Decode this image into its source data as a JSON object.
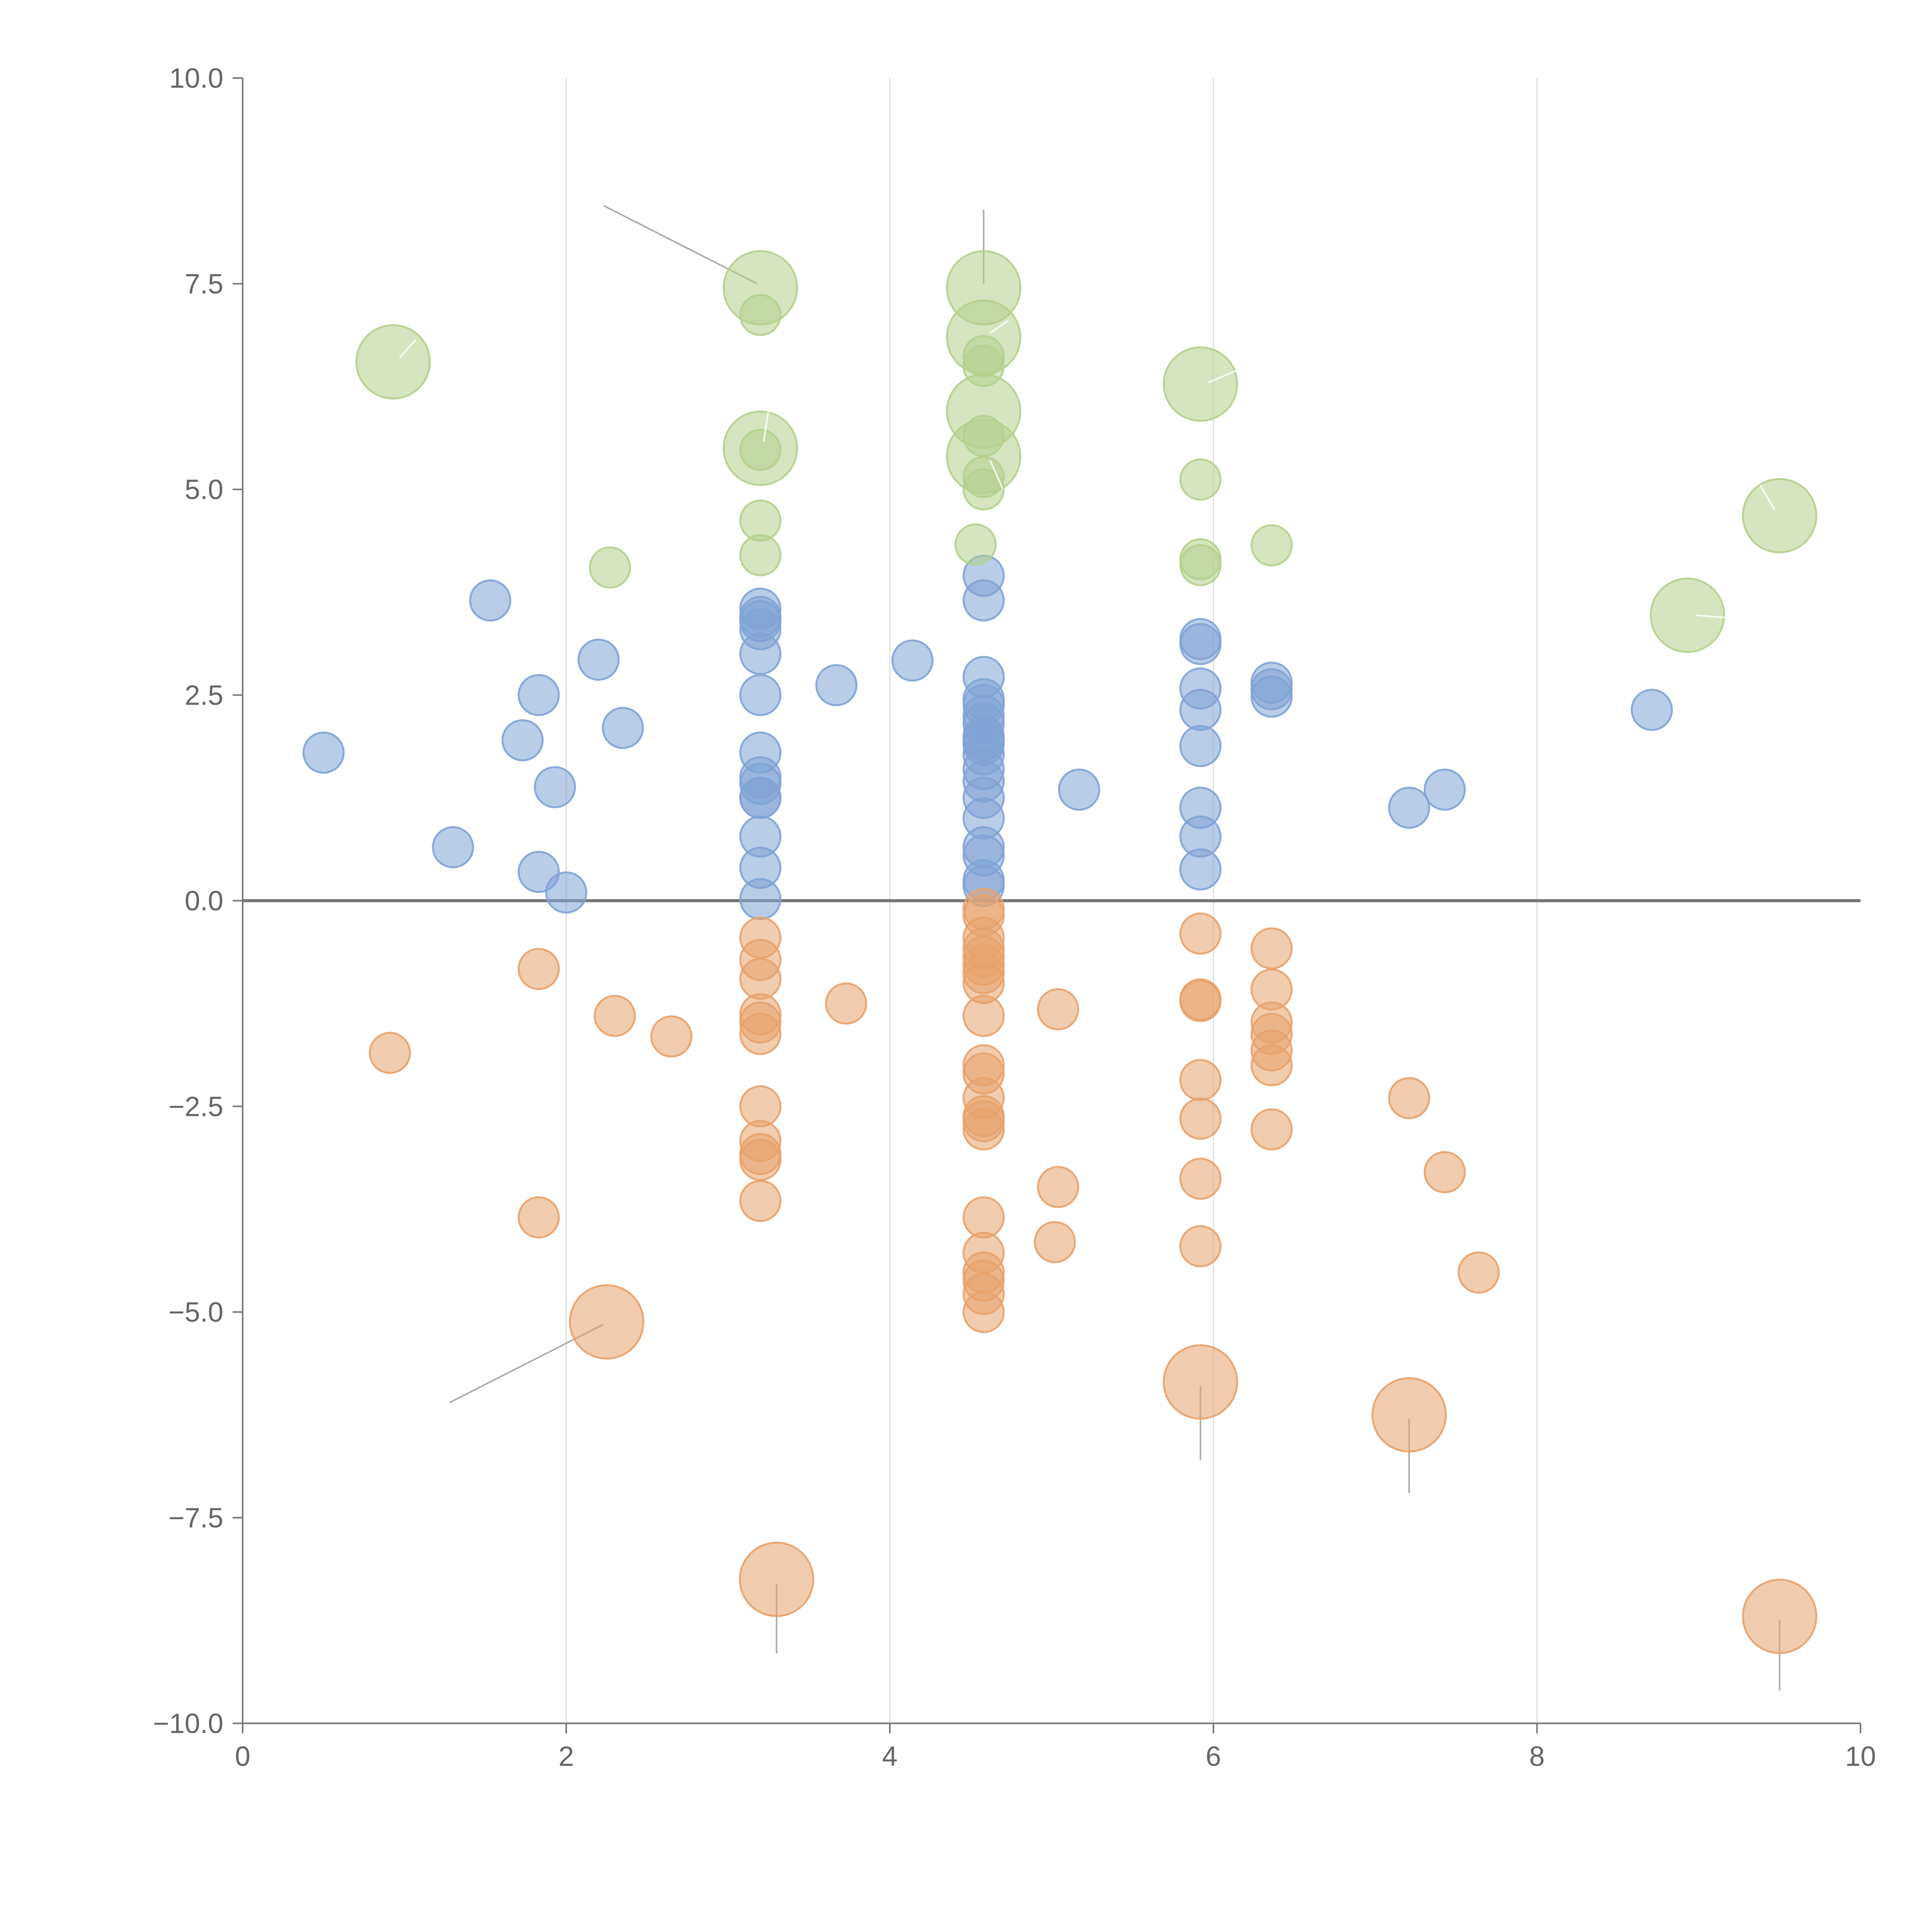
{
  "chart_data": {
    "type": "scatter",
    "title": "",
    "xlabel": "",
    "ylabel": "",
    "xlim": [
      0,
      10
    ],
    "ylim": [
      -10,
      10
    ],
    "x_ticks": [
      0,
      2,
      4,
      6,
      8,
      10
    ],
    "x_tick_labels": [
      "0",
      "2",
      "4",
      "6",
      "8",
      "10"
    ],
    "y_ticks": [
      10,
      7.5,
      5,
      2.5,
      0,
      -2.5,
      -5,
      -7.5,
      -10
    ],
    "y_tick_labels": [
      "10.0",
      "7.5",
      "5.0",
      "2.5",
      "0.0",
      "−2.5",
      "−5.0",
      "−7.5",
      "−10.0"
    ],
    "x_grid": true,
    "y_grid": false,
    "zero_line": true,
    "colors": {
      "blue": "#7fa3d6",
      "orange": "#e8a26b",
      "green": "#b4d08c",
      "leader": "#aaaaaa"
    },
    "series": [
      {
        "name": "blue",
        "color": "#7fa3d6",
        "points": [
          {
            "x": 0.5,
            "y": 1.8
          },
          {
            "x": 1.3,
            "y": 0.65
          },
          {
            "x": 1.53,
            "y": 3.65
          },
          {
            "x": 1.73,
            "y": 1.95
          },
          {
            "x": 1.83,
            "y": 2.5
          },
          {
            "x": 1.83,
            "y": 0.35
          },
          {
            "x": 1.93,
            "y": 1.38
          },
          {
            "x": 2.0,
            "y": 0.1
          },
          {
            "x": 2.2,
            "y": 2.93
          },
          {
            "x": 2.35,
            "y": 2.1
          },
          {
            "x": 3.2,
            "y": 3.55
          },
          {
            "x": 3.2,
            "y": 3.45
          },
          {
            "x": 3.2,
            "y": 3.4
          },
          {
            "x": 3.2,
            "y": 3.3
          },
          {
            "x": 3.2,
            "y": 3.0
          },
          {
            "x": 3.2,
            "y": 2.5
          },
          {
            "x": 3.2,
            "y": 1.8
          },
          {
            "x": 3.2,
            "y": 1.5
          },
          {
            "x": 3.2,
            "y": 1.42
          },
          {
            "x": 3.2,
            "y": 1.25
          },
          {
            "x": 3.2,
            "y": 1.25
          },
          {
            "x": 3.2,
            "y": 0.78
          },
          {
            "x": 3.2,
            "y": 0.4
          },
          {
            "x": 3.2,
            "y": 0.02
          },
          {
            "x": 3.67,
            "y": 2.62
          },
          {
            "x": 4.14,
            "y": 2.92
          },
          {
            "x": 4.58,
            "y": 3.95
          },
          {
            "x": 4.58,
            "y": 3.65
          },
          {
            "x": 4.58,
            "y": 2.72
          },
          {
            "x": 4.58,
            "y": 2.45
          },
          {
            "x": 4.58,
            "y": 2.38
          },
          {
            "x": 4.58,
            "y": 2.25
          },
          {
            "x": 4.58,
            "y": 2.15
          },
          {
            "x": 4.58,
            "y": 2.0
          },
          {
            "x": 4.58,
            "y": 1.95
          },
          {
            "x": 4.58,
            "y": 1.9
          },
          {
            "x": 4.58,
            "y": 1.78
          },
          {
            "x": 4.58,
            "y": 1.6
          },
          {
            "x": 4.58,
            "y": 1.45
          },
          {
            "x": 4.58,
            "y": 1.25
          },
          {
            "x": 4.58,
            "y": 1.0
          },
          {
            "x": 4.58,
            "y": 0.65
          },
          {
            "x": 4.58,
            "y": 0.55
          },
          {
            "x": 4.58,
            "y": 0.25
          },
          {
            "x": 4.58,
            "y": 0.18
          },
          {
            "x": 5.17,
            "y": 1.35
          },
          {
            "x": 5.92,
            "y": 3.18
          },
          {
            "x": 5.92,
            "y": 3.12
          },
          {
            "x": 5.92,
            "y": 2.58
          },
          {
            "x": 5.92,
            "y": 2.32
          },
          {
            "x": 5.92,
            "y": 1.88
          },
          {
            "x": 5.92,
            "y": 1.13
          },
          {
            "x": 5.92,
            "y": 0.78
          },
          {
            "x": 5.92,
            "y": 0.38
          },
          {
            "x": 6.36,
            "y": 2.65
          },
          {
            "x": 6.36,
            "y": 2.57
          },
          {
            "x": 6.36,
            "y": 2.48
          },
          {
            "x": 7.21,
            "y": 1.13
          },
          {
            "x": 7.43,
            "y": 1.35
          },
          {
            "x": 8.71,
            "y": 2.32
          }
        ]
      },
      {
        "name": "orange",
        "color": "#e8a26b",
        "points": [
          {
            "x": 0.91,
            "y": -1.85
          },
          {
            "x": 1.83,
            "y": -0.83
          },
          {
            "x": 1.83,
            "y": -3.85
          },
          {
            "x": 2.3,
            "y": -1.4
          },
          {
            "x": 2.65,
            "y": -1.65
          },
          {
            "x": 3.2,
            "y": -0.45
          },
          {
            "x": 3.2,
            "y": -0.72
          },
          {
            "x": 3.2,
            "y": -0.95
          },
          {
            "x": 3.2,
            "y": -1.38
          },
          {
            "x": 3.2,
            "y": -1.48
          },
          {
            "x": 3.2,
            "y": -1.62
          },
          {
            "x": 3.2,
            "y": -2.5
          },
          {
            "x": 3.2,
            "y": -2.92
          },
          {
            "x": 3.2,
            "y": -3.08
          },
          {
            "x": 3.2,
            "y": -3.15
          },
          {
            "x": 3.2,
            "y": -3.65
          },
          {
            "x": 3.73,
            "y": -1.25
          },
          {
            "x": 4.58,
            "y": -0.1
          },
          {
            "x": 4.58,
            "y": -0.18
          },
          {
            "x": 4.58,
            "y": -0.45
          },
          {
            "x": 4.58,
            "y": -0.58
          },
          {
            "x": 4.58,
            "y": -0.68
          },
          {
            "x": 4.58,
            "y": -0.78
          },
          {
            "x": 4.58,
            "y": -0.88
          },
          {
            "x": 4.58,
            "y": -1.0
          },
          {
            "x": 4.58,
            "y": -1.4
          },
          {
            "x": 4.58,
            "y": -2.0
          },
          {
            "x": 4.58,
            "y": -2.1
          },
          {
            "x": 4.58,
            "y": -2.4
          },
          {
            "x": 4.58,
            "y": -2.62
          },
          {
            "x": 4.58,
            "y": -2.68
          },
          {
            "x": 4.58,
            "y": -2.78
          },
          {
            "x": 4.58,
            "y": -3.85
          },
          {
            "x": 4.58,
            "y": -4.28
          },
          {
            "x": 4.58,
            "y": -4.52
          },
          {
            "x": 4.58,
            "y": -4.62
          },
          {
            "x": 4.58,
            "y": -4.78
          },
          {
            "x": 4.58,
            "y": -5.0
          },
          {
            "x": 5.02,
            "y": -4.15
          },
          {
            "x": 5.04,
            "y": -1.32
          },
          {
            "x": 5.04,
            "y": -3.48
          },
          {
            "x": 5.92,
            "y": -0.4
          },
          {
            "x": 5.92,
            "y": -1.2
          },
          {
            "x": 5.92,
            "y": -1.22
          },
          {
            "x": 5.92,
            "y": -2.18
          },
          {
            "x": 5.92,
            "y": -2.65
          },
          {
            "x": 5.92,
            "y": -3.38
          },
          {
            "x": 5.92,
            "y": -4.2
          },
          {
            "x": 6.36,
            "y": -0.58
          },
          {
            "x": 6.36,
            "y": -1.08
          },
          {
            "x": 6.36,
            "y": -1.48
          },
          {
            "x": 6.36,
            "y": -1.62
          },
          {
            "x": 6.36,
            "y": -1.82
          },
          {
            "x": 6.36,
            "y": -2.0
          },
          {
            "x": 6.36,
            "y": -2.78
          },
          {
            "x": 7.21,
            "y": -2.4
          },
          {
            "x": 7.43,
            "y": -3.3
          },
          {
            "x": 7.64,
            "y": -4.52
          }
        ]
      },
      {
        "name": "green",
        "color": "#b4d08c",
        "points": [
          {
            "x": 2.27,
            "y": 4.05
          },
          {
            "x": 3.2,
            "y": 7.12
          },
          {
            "x": 3.2,
            "y": 5.48
          },
          {
            "x": 3.2,
            "y": 4.62
          },
          {
            "x": 3.2,
            "y": 4.2
          },
          {
            "x": 4.53,
            "y": 4.33
          },
          {
            "x": 4.58,
            "y": 6.62
          },
          {
            "x": 4.58,
            "y": 6.5
          },
          {
            "x": 4.58,
            "y": 5.65
          },
          {
            "x": 4.58,
            "y": 5.15
          },
          {
            "x": 4.58,
            "y": 5.0
          },
          {
            "x": 5.92,
            "y": 5.12
          },
          {
            "x": 5.92,
            "y": 4.15
          },
          {
            "x": 5.92,
            "y": 4.08
          },
          {
            "x": 6.36,
            "y": 4.32
          }
        ]
      }
    ],
    "highlighted_points": [
      {
        "group": "green",
        "x": 0.93,
        "y": 6.55,
        "leader": {
          "x1": 0.97,
          "y1": 6.6,
          "x2": 1.07,
          "y2": 6.82,
          "light": true
        }
      },
      {
        "group": "green",
        "x": 3.2,
        "y": 7.45,
        "leader": {
          "x1": 3.18,
          "y1": 7.5,
          "x2": 2.23,
          "y2": 8.45,
          "light": false
        }
      },
      {
        "group": "green",
        "x": 3.2,
        "y": 5.5,
        "leader": {
          "x1": 3.22,
          "y1": 5.58,
          "x2": 3.25,
          "y2": 5.95,
          "light": true
        }
      },
      {
        "group": "green",
        "x": 4.58,
        "y": 7.45,
        "leader": {
          "x1": 4.58,
          "y1": 7.5,
          "x2": 4.58,
          "y2": 8.4,
          "light": false
        }
      },
      {
        "group": "green",
        "x": 4.58,
        "y": 6.85,
        "leader": {
          "x1": 4.62,
          "y1": 6.9,
          "x2": 4.73,
          "y2": 7.05,
          "light": true
        }
      },
      {
        "group": "green",
        "x": 4.58,
        "y": 5.95,
        "leader": null
      },
      {
        "group": "green",
        "x": 4.58,
        "y": 5.4,
        "leader": {
          "x1": 4.62,
          "y1": 5.35,
          "x2": 4.7,
          "y2": 5.0,
          "light": true
        }
      },
      {
        "group": "green",
        "x": 5.92,
        "y": 6.28,
        "leader": {
          "x1": 5.97,
          "y1": 6.3,
          "x2": 6.15,
          "y2": 6.45,
          "light": true
        }
      },
      {
        "group": "green",
        "x": 8.93,
        "y": 3.47,
        "leader": {
          "x1": 8.98,
          "y1": 3.47,
          "x2": 9.17,
          "y2": 3.44,
          "light": true
        }
      },
      {
        "group": "green",
        "x": 9.5,
        "y": 4.68,
        "leader": {
          "x1": 9.47,
          "y1": 4.75,
          "x2": 9.38,
          "y2": 5.05,
          "light": true
        }
      },
      {
        "group": "orange",
        "x": 2.25,
        "y": -5.12,
        "leader": {
          "x1": 2.23,
          "y1": -5.15,
          "x2": 1.28,
          "y2": -6.1,
          "light": false
        }
      },
      {
        "group": "orange",
        "x": 5.92,
        "y": -5.85,
        "leader": {
          "x1": 5.92,
          "y1": -5.9,
          "x2": 5.92,
          "y2": -6.8,
          "light": false
        }
      },
      {
        "group": "orange",
        "x": 7.21,
        "y": -6.25,
        "leader": {
          "x1": 7.21,
          "y1": -6.3,
          "x2": 7.21,
          "y2": -7.2,
          "light": false
        }
      },
      {
        "group": "orange",
        "x": 3.3,
        "y": -8.25,
        "leader": {
          "x1": 3.3,
          "y1": -8.3,
          "x2": 3.3,
          "y2": -9.15,
          "light": false
        }
      },
      {
        "group": "orange",
        "x": 9.5,
        "y": -8.7,
        "leader": {
          "x1": 9.5,
          "y1": -8.75,
          "x2": 9.5,
          "y2": -9.6,
          "light": false
        }
      }
    ]
  }
}
